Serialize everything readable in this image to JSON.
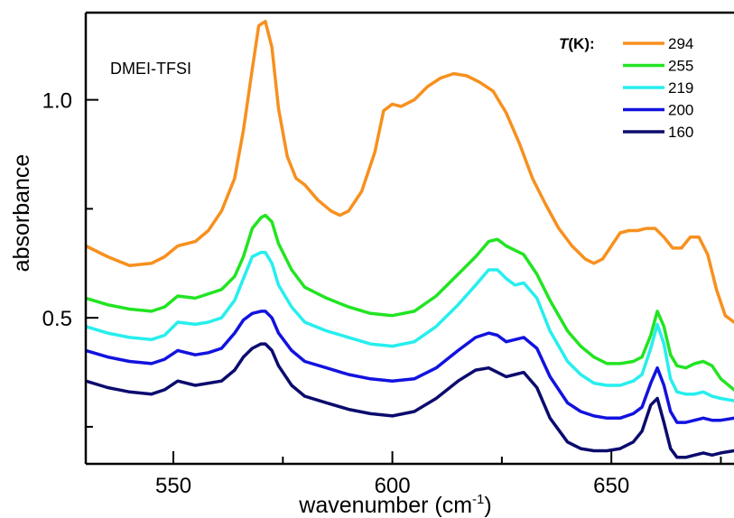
{
  "chart_data": {
    "type": "line",
    "annotation": "DMEI-TFSI",
    "xlabel": "wavenumber (cm",
    "xlabel_sup": "-1",
    "xlabel_end": ")",
    "ylabel": "absorbance",
    "xlim": [
      530,
      678
    ],
    "ylim": [
      0.165,
      1.2
    ],
    "x_ticks": [
      "550",
      "600",
      "650"
    ],
    "y_ticks": [
      "0.5",
      "1.0"
    ],
    "grid": false,
    "legend_title_italic": "T",
    "legend_title_rest": "(K):",
    "legend_position": "top-right",
    "series": [
      {
        "name": "294",
        "color": "#F7901E",
        "x": [
          530,
          535,
          540,
          545,
          548,
          551,
          555,
          558,
          561,
          564,
          566,
          568,
          569.5,
          571,
          572.5,
          574,
          576,
          578,
          580,
          583,
          586,
          588,
          590,
          593,
          596,
          598,
          600,
          602,
          605,
          608,
          611,
          614,
          617,
          620,
          623,
          626,
          629,
          632,
          635,
          638,
          641,
          644,
          646,
          648,
          650,
          652,
          654,
          656,
          658,
          660,
          662,
          664,
          666,
          668,
          670,
          672,
          674,
          676,
          678
        ],
        "y": [
          0.665,
          0.64,
          0.62,
          0.625,
          0.64,
          0.665,
          0.675,
          0.7,
          0.745,
          0.82,
          0.93,
          1.07,
          1.17,
          1.18,
          1.12,
          0.98,
          0.87,
          0.82,
          0.805,
          0.77,
          0.745,
          0.735,
          0.745,
          0.79,
          0.88,
          0.975,
          0.99,
          0.985,
          1.0,
          1.03,
          1.05,
          1.06,
          1.055,
          1.04,
          1.02,
          0.97,
          0.9,
          0.82,
          0.76,
          0.705,
          0.665,
          0.635,
          0.625,
          0.635,
          0.665,
          0.695,
          0.7,
          0.7,
          0.705,
          0.705,
          0.685,
          0.66,
          0.66,
          0.685,
          0.685,
          0.645,
          0.565,
          0.505,
          0.49
        ]
      },
      {
        "name": "255",
        "color": "#22E422",
        "x": [
          530,
          535,
          540,
          545,
          548,
          551,
          555,
          558,
          561,
          564,
          566,
          568,
          570,
          571,
          572.5,
          574,
          577,
          580,
          585,
          590,
          595,
          600,
          605,
          610,
          615,
          619,
          622,
          624,
          626,
          628,
          630,
          633,
          636,
          640,
          643,
          646,
          649,
          652,
          655,
          657,
          659,
          660.5,
          662,
          663.5,
          665,
          667,
          669,
          671,
          673,
          675,
          678
        ],
        "y": [
          0.545,
          0.53,
          0.52,
          0.515,
          0.525,
          0.55,
          0.545,
          0.555,
          0.565,
          0.595,
          0.64,
          0.705,
          0.73,
          0.735,
          0.72,
          0.67,
          0.61,
          0.57,
          0.545,
          0.525,
          0.51,
          0.505,
          0.515,
          0.55,
          0.6,
          0.64,
          0.675,
          0.68,
          0.665,
          0.655,
          0.645,
          0.6,
          0.54,
          0.47,
          0.435,
          0.41,
          0.395,
          0.395,
          0.4,
          0.41,
          0.46,
          0.515,
          0.48,
          0.415,
          0.39,
          0.385,
          0.395,
          0.4,
          0.39,
          0.36,
          0.335
        ]
      },
      {
        "name": "219",
        "color": "#27EEEE",
        "x": [
          530,
          535,
          540,
          545,
          548,
          551,
          555,
          558,
          561,
          564,
          566,
          568,
          570,
          571,
          572.5,
          574,
          577,
          580,
          585,
          590,
          595,
          600,
          605,
          610,
          615,
          619,
          622,
          624,
          626,
          628,
          630,
          633,
          636,
          640,
          643,
          646,
          649,
          652,
          655,
          657,
          659,
          660.5,
          662,
          663.5,
          665,
          667,
          669,
          671,
          673,
          675,
          678
        ],
        "y": [
          0.48,
          0.465,
          0.455,
          0.45,
          0.46,
          0.49,
          0.485,
          0.49,
          0.5,
          0.54,
          0.59,
          0.64,
          0.65,
          0.65,
          0.625,
          0.575,
          0.525,
          0.49,
          0.47,
          0.455,
          0.44,
          0.435,
          0.445,
          0.48,
          0.53,
          0.575,
          0.61,
          0.61,
          0.59,
          0.575,
          0.58,
          0.545,
          0.47,
          0.4,
          0.37,
          0.35,
          0.345,
          0.345,
          0.355,
          0.37,
          0.43,
          0.485,
          0.44,
          0.36,
          0.33,
          0.325,
          0.325,
          0.33,
          0.32,
          0.315,
          0.31
        ]
      },
      {
        "name": "200",
        "color": "#1212E0",
        "x": [
          530,
          535,
          540,
          545,
          548,
          551,
          555,
          558,
          561,
          564,
          566,
          568,
          570,
          571,
          572.5,
          574,
          577,
          580,
          585,
          590,
          595,
          600,
          605,
          610,
          615,
          619,
          622,
          624,
          626,
          628,
          630,
          633,
          636,
          640,
          643,
          646,
          649,
          652,
          655,
          657,
          659,
          660.5,
          662,
          663.5,
          665,
          667,
          669,
          671,
          673,
          675,
          678
        ],
        "y": [
          0.425,
          0.41,
          0.4,
          0.395,
          0.405,
          0.425,
          0.415,
          0.42,
          0.43,
          0.465,
          0.495,
          0.51,
          0.515,
          0.515,
          0.5,
          0.465,
          0.425,
          0.4,
          0.385,
          0.37,
          0.36,
          0.355,
          0.36,
          0.385,
          0.425,
          0.455,
          0.465,
          0.46,
          0.445,
          0.45,
          0.455,
          0.43,
          0.365,
          0.305,
          0.285,
          0.275,
          0.27,
          0.27,
          0.28,
          0.295,
          0.35,
          0.385,
          0.345,
          0.285,
          0.26,
          0.26,
          0.265,
          0.27,
          0.265,
          0.265,
          0.27
        ]
      },
      {
        "name": "160",
        "color": "#0B0B6E",
        "x": [
          530,
          535,
          540,
          545,
          548,
          551,
          555,
          558,
          561,
          564,
          566,
          568,
          570,
          571,
          572.5,
          574,
          577,
          580,
          585,
          590,
          595,
          600,
          605,
          610,
          615,
          619,
          622,
          624,
          626,
          628,
          630,
          633,
          636,
          640,
          643,
          646,
          649,
          652,
          655,
          657,
          659,
          660.5,
          662,
          663.5,
          665,
          667,
          669,
          671,
          673,
          675,
          678
        ],
        "y": [
          0.355,
          0.34,
          0.33,
          0.325,
          0.335,
          0.355,
          0.345,
          0.35,
          0.355,
          0.38,
          0.41,
          0.43,
          0.44,
          0.44,
          0.425,
          0.39,
          0.345,
          0.32,
          0.305,
          0.29,
          0.28,
          0.275,
          0.285,
          0.315,
          0.355,
          0.38,
          0.385,
          0.375,
          0.365,
          0.37,
          0.375,
          0.34,
          0.27,
          0.215,
          0.2,
          0.195,
          0.195,
          0.2,
          0.215,
          0.24,
          0.3,
          0.315,
          0.26,
          0.2,
          0.18,
          0.18,
          0.185,
          0.19,
          0.185,
          0.19,
          0.195
        ]
      }
    ]
  }
}
